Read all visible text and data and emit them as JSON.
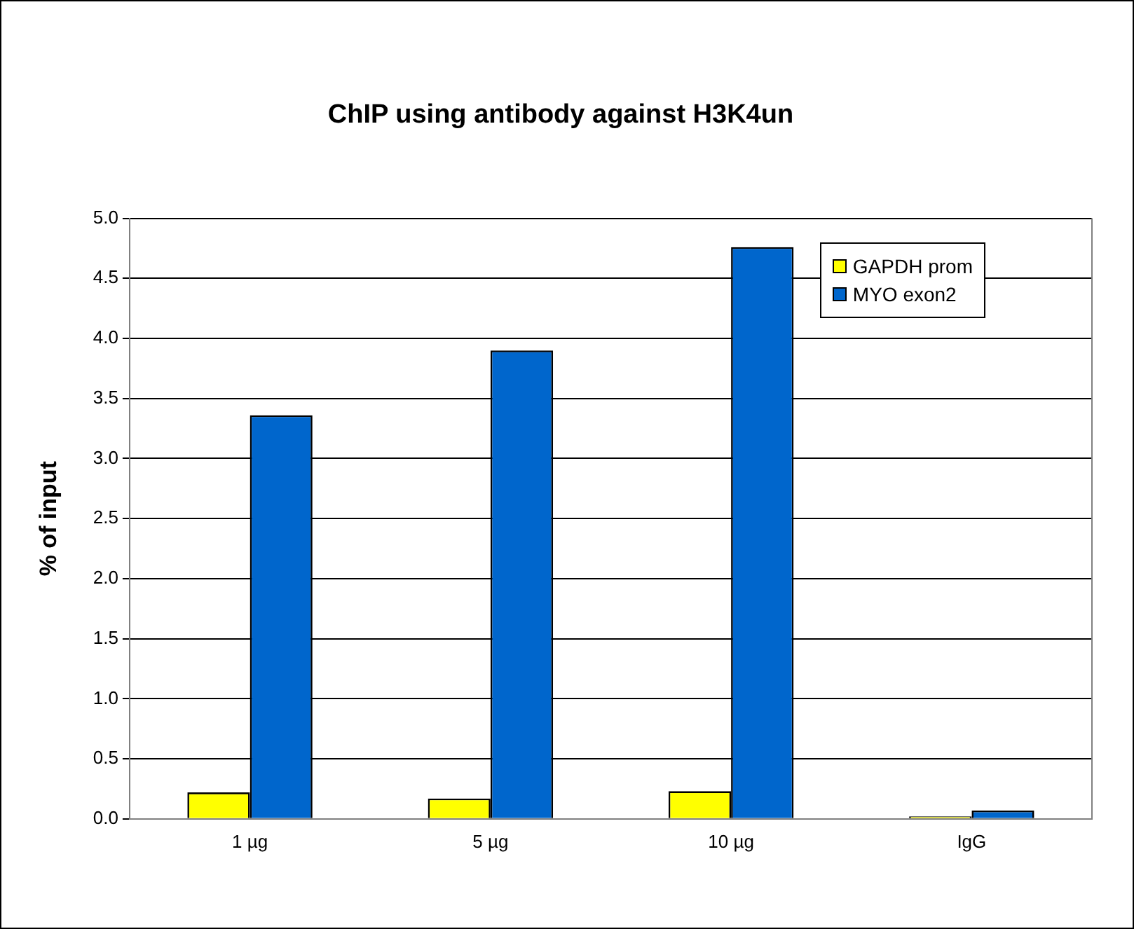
{
  "chart_data": {
    "type": "bar",
    "title": "ChIP using antibody against H3K4un",
    "ylabel": "% of input",
    "categories": [
      "1 µg",
      "5 µg",
      "10 µg",
      "IgG"
    ],
    "series": [
      {
        "name": "GAPDH prom",
        "color": "#ffff00",
        "values": [
          0.22,
          0.17,
          0.23,
          0.02
        ]
      },
      {
        "name": "MYO exon2",
        "color": "#0066cc",
        "values": [
          3.36,
          3.9,
          4.76,
          0.07
        ]
      }
    ],
    "ylim": [
      0,
      5
    ],
    "yticks": [
      {
        "value": 0,
        "label": "0.0"
      },
      {
        "value": 0.5,
        "label": "0.5"
      },
      {
        "value": 1,
        "label": "1.0"
      },
      {
        "value": 1.5,
        "label": "1.5"
      },
      {
        "value": 2,
        "label": "2.0"
      },
      {
        "value": 2.5,
        "label": "2.5"
      },
      {
        "value": 3,
        "label": "3.0"
      },
      {
        "value": 3.5,
        "label": "3.5"
      },
      {
        "value": 4,
        "label": "4.0"
      },
      {
        "value": 4.5,
        "label": "4.5"
      },
      {
        "value": 5,
        "label": "5.0"
      }
    ],
    "grid": "y",
    "legend": "top right"
  }
}
